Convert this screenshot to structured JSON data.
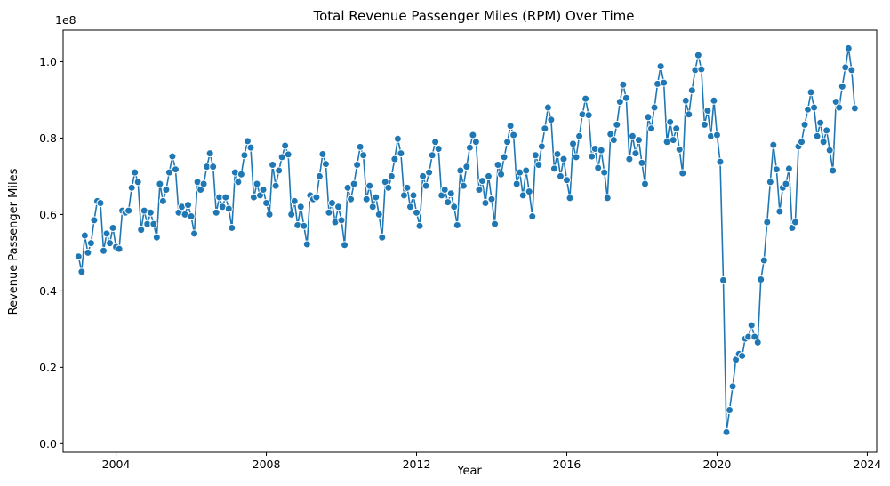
{
  "chart_data": {
    "type": "line",
    "title": "Total Revenue Passenger Miles (RPM) Over Time",
    "xlabel": "Year",
    "ylabel": "Revenue Passenger Miles",
    "y_offset_label": "1e8",
    "y_scale": 100000000,
    "xlim": [
      2002.59,
      2024.25
    ],
    "ylim": [
      -0.0225,
      1.0825
    ],
    "x_ticks": [
      2004,
      2008,
      2012,
      2016,
      2020,
      2024
    ],
    "y_ticks": [
      0.0,
      0.2,
      0.4,
      0.6,
      0.8,
      1.0
    ],
    "y_tick_labels": [
      "0.0",
      "0.2",
      "0.4",
      "0.6",
      "0.8",
      "1.0"
    ],
    "grid": false,
    "marker": "circle",
    "color": "#1f77b4",
    "start": "2003-01",
    "series": [
      {
        "values_1e8": [
          0.49,
          0.45,
          0.545,
          0.5,
          0.525,
          0.585,
          0.635,
          0.63,
          0.505,
          0.55,
          0.525,
          0.565,
          0.515,
          0.51,
          0.61,
          0.605,
          0.61,
          0.67,
          0.71,
          0.685,
          0.56,
          0.61,
          0.575,
          0.605,
          0.575,
          0.54,
          0.68,
          0.635,
          0.665,
          0.71,
          0.752,
          0.718,
          0.605,
          0.62,
          0.6,
          0.625,
          0.595,
          0.55,
          0.685,
          0.665,
          0.68,
          0.725,
          0.76,
          0.725,
          0.605,
          0.645,
          0.62,
          0.645,
          0.615,
          0.565,
          0.71,
          0.685,
          0.705,
          0.755,
          0.792,
          0.775,
          0.645,
          0.68,
          0.65,
          0.665,
          0.63,
          0.6,
          0.73,
          0.675,
          0.715,
          0.75,
          0.78,
          0.757,
          0.6,
          0.635,
          0.572,
          0.62,
          0.57,
          0.522,
          0.65,
          0.64,
          0.645,
          0.7,
          0.758,
          0.732,
          0.605,
          0.63,
          0.58,
          0.62,
          0.585,
          0.52,
          0.67,
          0.64,
          0.68,
          0.73,
          0.777,
          0.755,
          0.64,
          0.675,
          0.62,
          0.645,
          0.6,
          0.54,
          0.685,
          0.67,
          0.7,
          0.745,
          0.798,
          0.76,
          0.65,
          0.67,
          0.62,
          0.65,
          0.605,
          0.57,
          0.7,
          0.675,
          0.71,
          0.755,
          0.79,
          0.772,
          0.65,
          0.665,
          0.632,
          0.655,
          0.62,
          0.572,
          0.715,
          0.675,
          0.725,
          0.775,
          0.808,
          0.79,
          0.665,
          0.688,
          0.63,
          0.7,
          0.64,
          0.575,
          0.73,
          0.705,
          0.75,
          0.79,
          0.832,
          0.808,
          0.68,
          0.71,
          0.65,
          0.715,
          0.66,
          0.595,
          0.755,
          0.73,
          0.778,
          0.825,
          0.88,
          0.848,
          0.72,
          0.758,
          0.7,
          0.745,
          0.69,
          0.643,
          0.785,
          0.75,
          0.805,
          0.862,
          0.903,
          0.86,
          0.752,
          0.772,
          0.722,
          0.768,
          0.71,
          0.643,
          0.81,
          0.795,
          0.835,
          0.895,
          0.94,
          0.905,
          0.745,
          0.805,
          0.76,
          0.795,
          0.735,
          0.68,
          0.855,
          0.825,
          0.88,
          0.942,
          0.988,
          0.945,
          0.79,
          0.842,
          0.795,
          0.825,
          0.77,
          0.708,
          0.898,
          0.862,
          0.925,
          0.978,
          1.017,
          0.98,
          0.835,
          0.872,
          0.805,
          0.898,
          0.808,
          0.738,
          0.428,
          0.03,
          0.088,
          0.15,
          0.22,
          0.235,
          0.23,
          0.275,
          0.28,
          0.31,
          0.28,
          0.265,
          0.43,
          0.48,
          0.58,
          0.685,
          0.782,
          0.718,
          0.608,
          0.67,
          0.68,
          0.72,
          0.565,
          0.58,
          0.778,
          0.79,
          0.835,
          0.875,
          0.92,
          0.88,
          0.805,
          0.84,
          0.79,
          0.82,
          0.768,
          0.715,
          0.895,
          0.88,
          0.935,
          0.985,
          1.035,
          0.978,
          0.878
        ]
      }
    ]
  }
}
